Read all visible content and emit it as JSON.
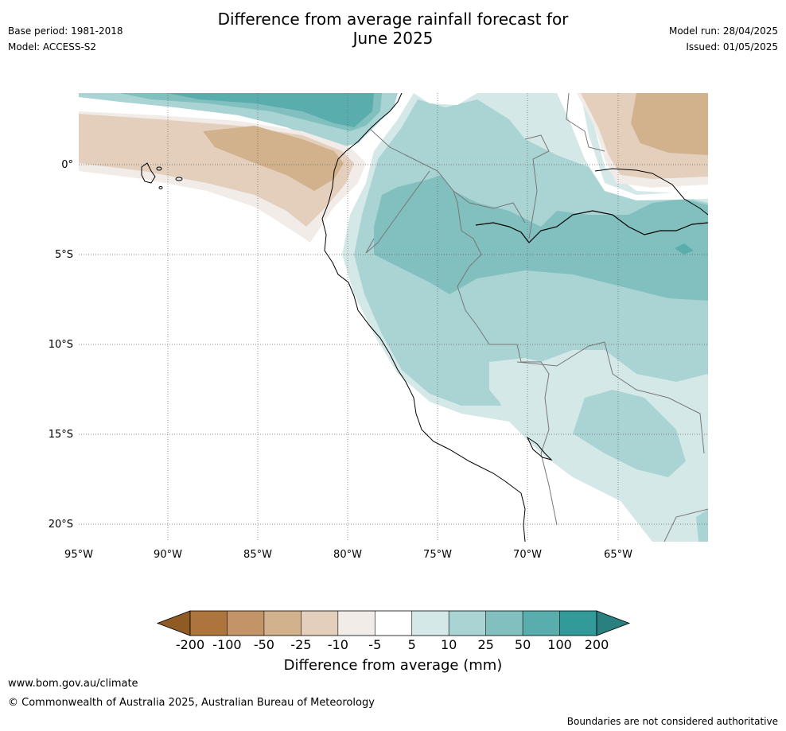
{
  "title_line1": "Difference from average rainfall forecast for",
  "title_line2": "June 2025",
  "meta_left": {
    "base_period": "Base period: 1981-2018",
    "model": "Model: ACCESS-S2"
  },
  "meta_right": {
    "model_run": "Model run: 28/04/2025",
    "issued": "Issued: 01/05/2025"
  },
  "lat_labels": [
    "0°",
    "5°S",
    "10°S",
    "15°S",
    "20°S"
  ],
  "lon_labels": [
    "95°W",
    "90°W",
    "85°W",
    "80°W",
    "75°W",
    "70°W",
    "65°W"
  ],
  "colorbar": {
    "ticks": [
      "-200",
      "-100",
      "-50",
      "-25",
      "-10",
      "-5",
      "5",
      "10",
      "25",
      "50",
      "100",
      "200"
    ],
    "colors": [
      "#8f5a24",
      "#ad743d",
      "#c29467",
      "#d2b18d",
      "#e3cfbc",
      "#f1ece8",
      "#ffffff",
      "#d5e8e8",
      "#aad4d4",
      "#82c0c0",
      "#5aadad",
      "#339a9a",
      "#2a7f7f"
    ],
    "label": "Difference from average (mm)"
  },
  "footer": {
    "url": "www.bom.gov.au/climate",
    "copyright": "© Commonwealth of Australia 2025, Australian Bureau of Meteorology",
    "note": "Boundaries are not considered authoritative"
  }
}
